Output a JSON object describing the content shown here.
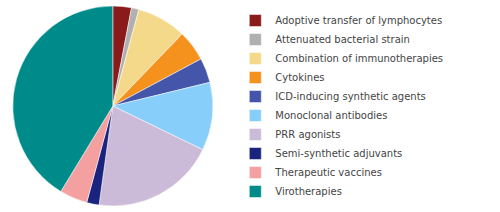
{
  "chart_data": {
    "type": "pie",
    "categories": [
      "Adoptive transfer of lymphocytes",
      "Attenuated bacterial strain",
      "Combination of immunotherapies",
      "Cytokines",
      "ICD-inducing synthetic agents",
      "Monoclonal antibodies",
      "PRR agonists",
      "Semi-synthetic adjuvants",
      "Therapeutic vaccines",
      "Virotherapies"
    ],
    "values": [
      3.0,
      1.2,
      8.0,
      5.0,
      4.0,
      11.0,
      20.0,
      2.0,
      4.5,
      41.3
    ],
    "colors": [
      "#8B1A1A",
      "#B0B0B0",
      "#F5D98B",
      "#F5921E",
      "#4455AA",
      "#87CEFA",
      "#CCBBD8",
      "#1A237E",
      "#F4A0A0",
      "#008B8B"
    ],
    "legend": "right"
  }
}
